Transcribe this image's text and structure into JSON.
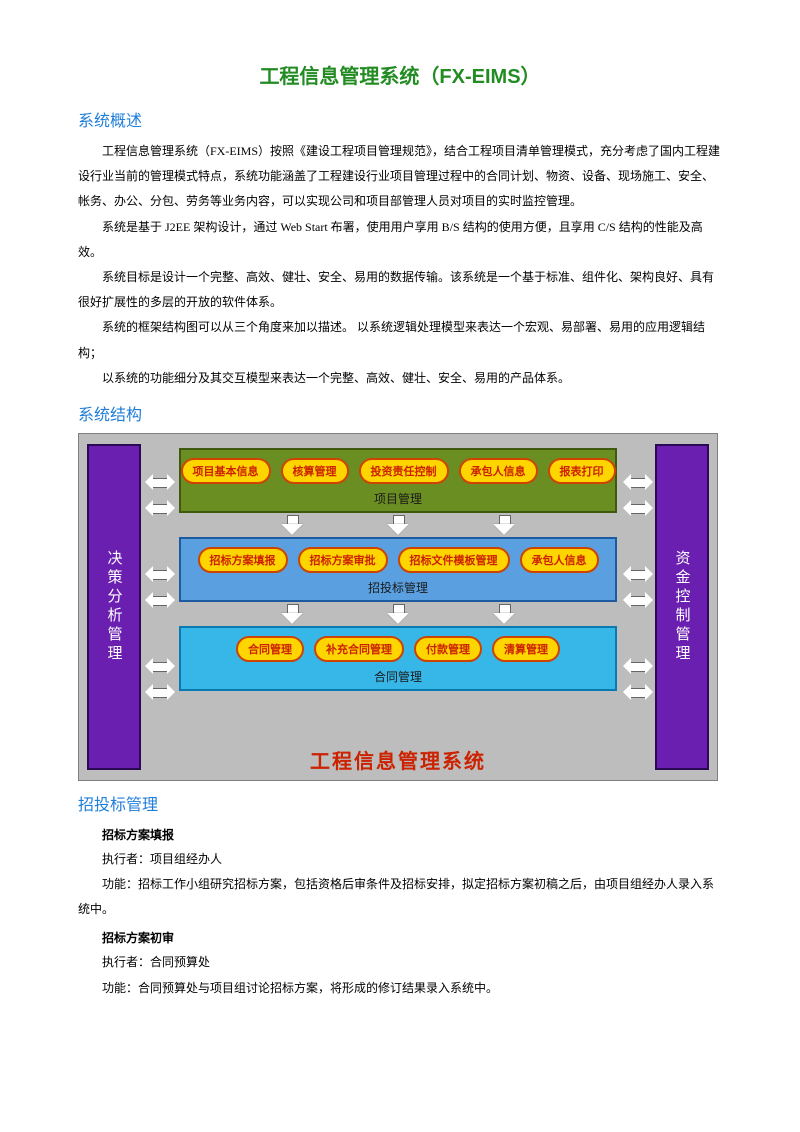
{
  "title": "工程信息管理系统（FX-EIMS）",
  "sections": {
    "overview": {
      "heading": "系统概述",
      "paras": [
        "工程信息管理系统（FX-EIMS）按照《建设工程项目管理规范》，结合工程项目清单管理模式，充分考虑了国内工程建设行业当前的管理模式特点，系统功能涵盖了工程建设行业项目管理过程中的合同计划、物资、设备、现场施工、安全、帐务、办公、分包、劳务等业务内容，可以实现公司和项目部管理人员对项目的实时监控管理。",
        "系统是基于 J2EE 架构设计，通过 Web Start 布署，使用用户享用 B/S 结构的使用方便，且享用 C/S 结构的性能及高效。",
        "系统目标是设计一个完整、高效、健壮、安全、易用的数据传输。该系统是一个基于标准、组件化、架构良好、具有很好扩展性的多层的开放的软件体系。",
        "系统的框架结构图可以从三个角度来加以描述。 以系统逻辑处理模型来表达一个宏观、易部署、易用的应用逻辑结构；",
        "以系统的功能细分及其交互模型来表达一个完整、高效、健壮、安全、易用的产品体系。"
      ]
    },
    "structure": {
      "heading": "系统结构"
    },
    "bidding": {
      "heading": "招投标管理",
      "items": [
        {
          "title": "招标方案填报",
          "executor": "执行者：项目组经办人",
          "func": "功能：招标工作小组研究招标方案，包括资格后审条件及招标安排，拟定招标方案初稿之后，由项目组经办人录入系统中。"
        },
        {
          "title": "招标方案初审",
          "executor": "执行者：合同预算处",
          "func": "功能：合同预算处与项目组讨论招标方案，将形成的修订结果录入系统中。"
        }
      ]
    }
  },
  "diagram": {
    "type": "flowchart",
    "background_color": "#bdbdbd",
    "border_color": "#808080",
    "left": {
      "label": "决策分析管理",
      "bg": "#6a1fb0",
      "border": "#2a0a55",
      "text_color": "#ffffff"
    },
    "right": {
      "label": "资金控制管理",
      "bg": "#6a1fb0",
      "border": "#2a0a55",
      "text_color": "#ffffff"
    },
    "system_title": "工程信息管理系统",
    "system_title_color": "#cc2200",
    "pill_style": {
      "bg": "#ffd500",
      "border": "#cc4400",
      "text": "#cc2200",
      "radius": 16
    },
    "modules": [
      {
        "label": "项目管理",
        "bg": "#6b8e23",
        "border": "#3f5a0f",
        "pills": [
          "项目基本信息",
          "核算管理",
          "投资责任控制",
          "承包人信息",
          "报表打印"
        ]
      },
      {
        "label": "招投标管理",
        "bg": "#5aa0e0",
        "border": "#1e5aa0",
        "pills": [
          "招标方案填报",
          "招标方案审批",
          "招标文件模板管理",
          "承包人信息"
        ]
      },
      {
        "label": "合同管理",
        "bg": "#37b6e8",
        "border": "#0a7ab0",
        "pills": [
          "合同管理",
          "补充合同管理",
          "付款管理",
          "清算管理"
        ]
      }
    ],
    "harrows_y": [
      40,
      132,
      224
    ]
  }
}
